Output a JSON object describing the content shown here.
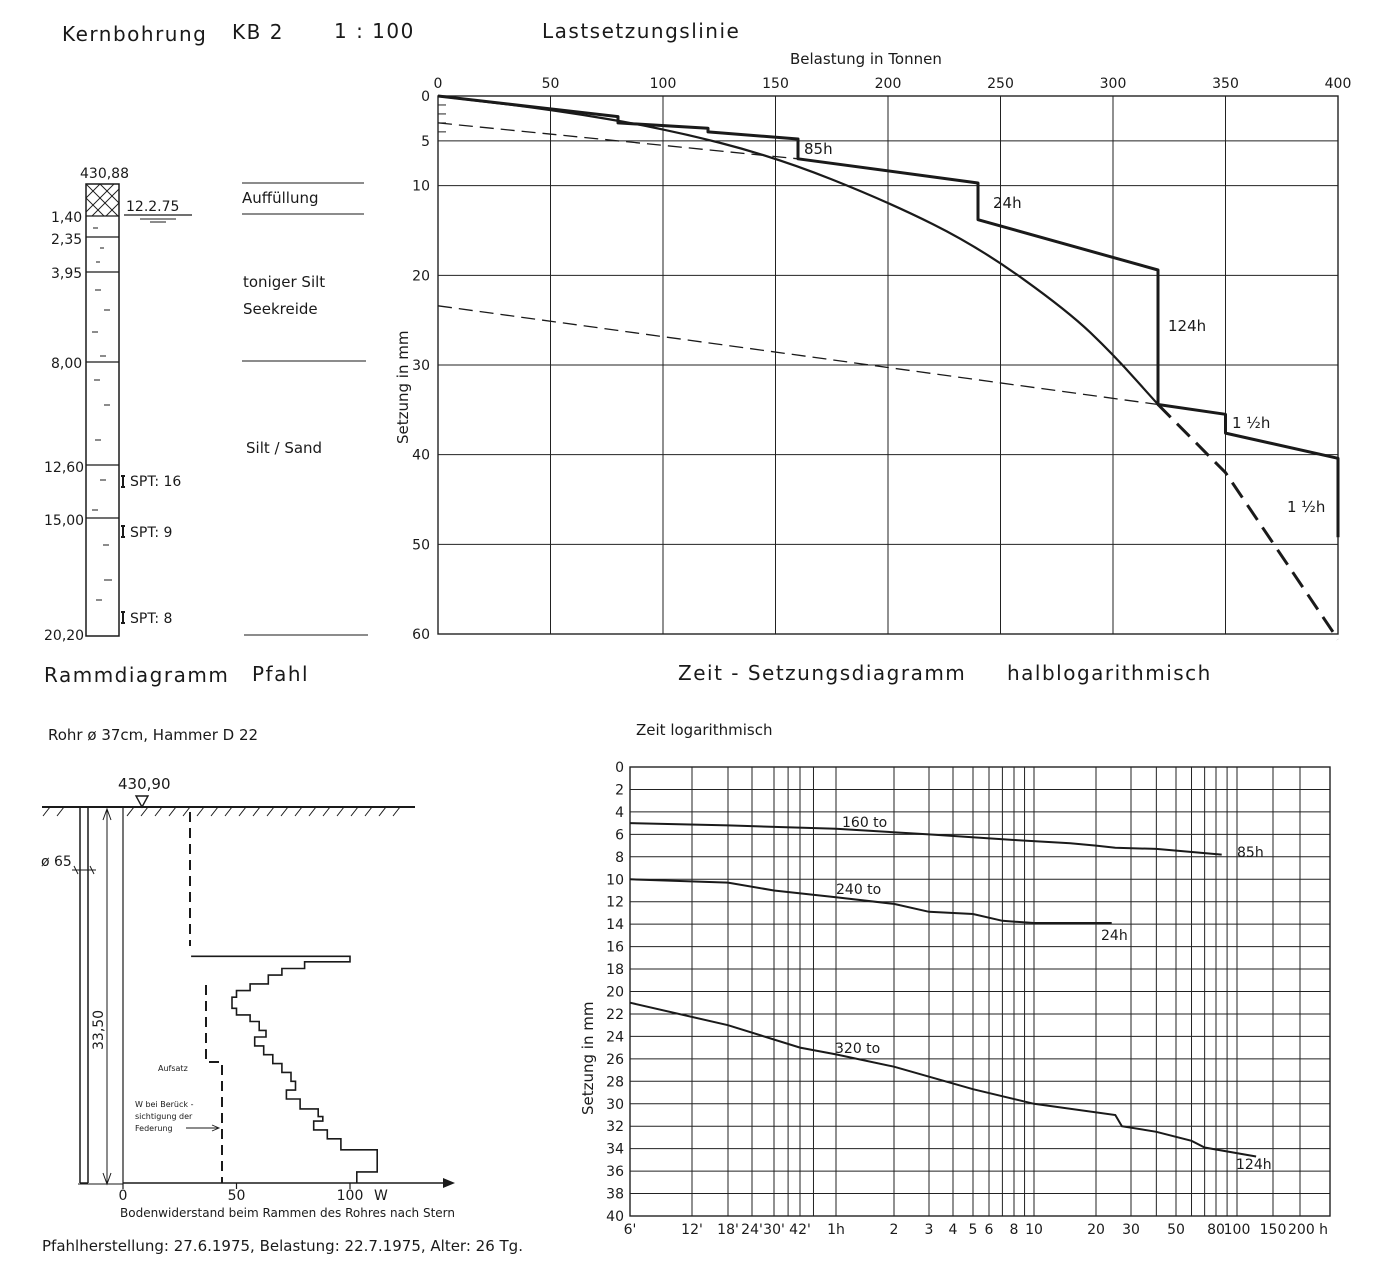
{
  "borehole": {
    "title": "Kernbohrung",
    "id": "KB 2",
    "scale": "1 : 100",
    "top_elevation": "430,88",
    "water_date": "12.2.75",
    "depths": [
      "1,40",
      "2,35",
      "3,95",
      "8,00",
      "12,60",
      "15,00",
      "20,20"
    ],
    "spt": [
      "SPT: 16",
      "SPT: 9",
      "SPT: 8"
    ],
    "strata": [
      "Auffüllung",
      "toniger Silt",
      "Seekreide",
      "Silt / Sand"
    ]
  },
  "load_settlement": {
    "title": "Lastsetzungslinie",
    "xlabel": "Belastung in Tonnen",
    "ylabel": "Setzung in mm",
    "x_ticks": [
      "0",
      "50",
      "100",
      "150",
      "200",
      "250",
      "300",
      "350",
      "400"
    ],
    "y_ticks": [
      "0",
      "5",
      "10",
      "20",
      "30",
      "40",
      "50",
      "60"
    ],
    "labels": [
      "85h",
      "24h",
      "124h",
      "1 ½h",
      "1 ½h"
    ]
  },
  "time_settlement": {
    "title": "Zeit - Setzungsdiagramm",
    "subtitle": "halblogarithmisch",
    "xlabel": "Zeit logarithmisch",
    "ylabel": "Setzung in mm",
    "x_ticks": [
      "6'",
      "12'",
      "18'",
      "24'",
      "30'",
      "42'",
      "1h",
      "2",
      "3",
      "4",
      "5",
      "6",
      "8",
      "10",
      "20",
      "30",
      "50",
      "80",
      "100",
      "150",
      "200 h"
    ],
    "y_ticks": [
      "0",
      "2",
      "4",
      "6",
      "8",
      "10",
      "12",
      "14",
      "16",
      "18",
      "20",
      "22",
      "24",
      "26",
      "28",
      "30",
      "32",
      "34",
      "36",
      "38",
      "40"
    ],
    "series_labels": [
      "160 to",
      "240 to",
      "320 to"
    ],
    "end_labels": [
      "85h",
      "24h",
      "124h"
    ]
  },
  "driving": {
    "title": "Rammdiagramm",
    "subtitle": "Pfahl",
    "pipe": "Rohr ø 37cm, Hammer D 22",
    "elevation": "430,90",
    "diameter": "ø 65",
    "length": "33,50",
    "note_aufsatz": "Aufsatz",
    "note_w": [
      "W bei Berück -",
      "sichtigung der",
      "Federung"
    ],
    "x_ticks": [
      "0",
      "50",
      "100"
    ],
    "x_unit": "W",
    "xlabel": "Bodenwiderstand beim Rammen des Rohres nach Stern",
    "footer": "Pfahlherstellung: 27.6.1975, Belastung: 22.7.1975, Alter: 26 Tg."
  },
  "chart_data": [
    {
      "type": "line",
      "title": "Lastsetzungslinie",
      "xlabel": "Belastung in Tonnen",
      "ylabel": "Setzung in mm",
      "xlim": [
        0,
        400
      ],
      "ylim": [
        60,
        0
      ],
      "series": [
        {
          "x": [
            0,
            80,
            80,
            120,
            120,
            160,
            160,
            240,
            240,
            320,
            320,
            350,
            350,
            400,
            400
          ],
          "y": [
            0,
            2.3,
            3,
            3.6,
            4,
            4.8,
            7,
            9.7,
            13.8,
            19.4,
            34.4,
            35.5,
            37.6,
            40.4,
            49.2
          ]
        },
        {
          "x": [
            0,
            50,
            100,
            150,
            200,
            240,
            280,
            300,
            320
          ],
          "y": [
            0,
            1.5,
            3.6,
            6.8,
            11.8,
            16.8,
            24,
            28.8,
            34.4
          ]
        },
        {
          "x": [
            320,
            350,
            400
          ],
          "y": [
            34.4,
            42,
            60.6
          ]
        },
        {
          "x": [
            0,
            160
          ],
          "y": [
            3,
            7
          ]
        },
        {
          "x": [
            0,
            320
          ],
          "y": [
            23.4,
            34.4
          ]
        }
      ]
    },
    {
      "type": "line",
      "title": "Zeit - Setzungsdiagramm",
      "xlabel": "Zeit logarithmisch",
      "ylabel": "Setzung in mm",
      "ylim": [
        40,
        0
      ],
      "series": [
        {
          "name": "160 to",
          "x": [
            0.1,
            0.3,
            1,
            3,
            8,
            15,
            20,
            25,
            40,
            85
          ],
          "y": [
            5,
            5.2,
            5.5,
            6,
            6.5,
            6.8,
            7,
            7.2,
            7.3,
            7.8
          ]
        },
        {
          "name": "240 to",
          "x": [
            0.1,
            0.3,
            0.5,
            1,
            2,
            3,
            5,
            7,
            10,
            24
          ],
          "y": [
            10,
            10.3,
            11,
            11.6,
            12.2,
            12.9,
            13.1,
            13.7,
            13.9,
            13.9
          ]
        },
        {
          "name": "320 to",
          "x": [
            0.1,
            0.3,
            0.7,
            1,
            2,
            5,
            10,
            25,
            27,
            40,
            60,
            70,
            124
          ],
          "y": [
            21,
            23,
            25,
            25.6,
            26.7,
            28.7,
            30,
            31,
            32,
            32.5,
            33.3,
            33.9,
            34.7
          ]
        }
      ]
    },
    {
      "type": "line",
      "title": "Rammdiagramm",
      "xlabel": "Bodenwiderstand beim Rammen des Rohres nach Stern",
      "xlim": [
        0,
        150
      ],
      "series": [
        {
          "x": [
            30,
            30,
            100,
            100,
            80,
            80,
            70,
            70,
            64,
            64,
            56,
            56,
            50,
            50,
            48,
            48,
            50,
            50,
            56,
            56,
            60,
            60,
            63,
            63,
            58,
            58,
            62,
            62,
            66,
            66,
            70,
            70,
            74,
            74,
            76,
            76,
            72,
            72,
            78,
            78,
            86,
            86,
            88,
            88,
            84,
            84,
            90,
            90,
            96,
            96,
            112,
            112,
            103,
            103
          ],
          "y": [
            0,
            13.5,
            13.5,
            14,
            14,
            14.6,
            14.6,
            15.2,
            15.2,
            16,
            16,
            16.6,
            16.6,
            17.2,
            17.2,
            18.2,
            18.2,
            18.8,
            18.8,
            19.4,
            19.4,
            20.2,
            20.2,
            20.8,
            20.8,
            21.6,
            21.6,
            22.4,
            22.4,
            23.2,
            23.2,
            24,
            24,
            24.8,
            24.8,
            25.6,
            25.6,
            26.4,
            26.4,
            27.3,
            27.3,
            28,
            28,
            28.4,
            28.4,
            29.2,
            29.2,
            30,
            30,
            31,
            31,
            33,
            33,
            34
          ]
        }
      ]
    }
  ]
}
